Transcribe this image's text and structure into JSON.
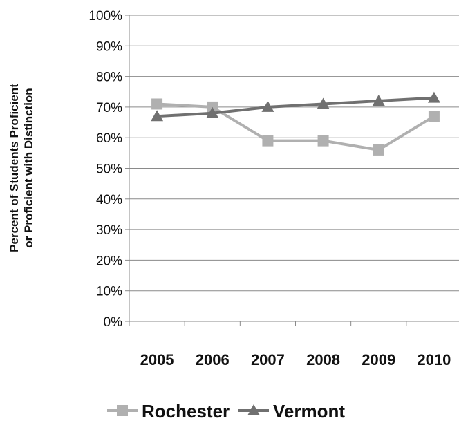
{
  "chart_data": {
    "type": "line",
    "categories": [
      "2005",
      "2006",
      "2007",
      "2008",
      "2009",
      "2010"
    ],
    "series": [
      {
        "name": "Rochester",
        "values": [
          71,
          70,
          59,
          59,
          56,
          67
        ],
        "color": "#b0b0b0",
        "marker": "square"
      },
      {
        "name": "Vermont",
        "values": [
          67,
          68,
          70,
          71,
          72,
          73
        ],
        "color": "#707070",
        "marker": "triangle"
      }
    ],
    "ylabel_lines": [
      "Percent of Students Proficient",
      "or Proficient with Distinction"
    ],
    "ylim": [
      0,
      100
    ],
    "yticks": [
      "0%",
      "10%",
      "20%",
      "30%",
      "40%",
      "50%",
      "60%",
      "70%",
      "80%",
      "90%",
      "100%"
    ],
    "grid": true,
    "legend_position": "bottom"
  }
}
